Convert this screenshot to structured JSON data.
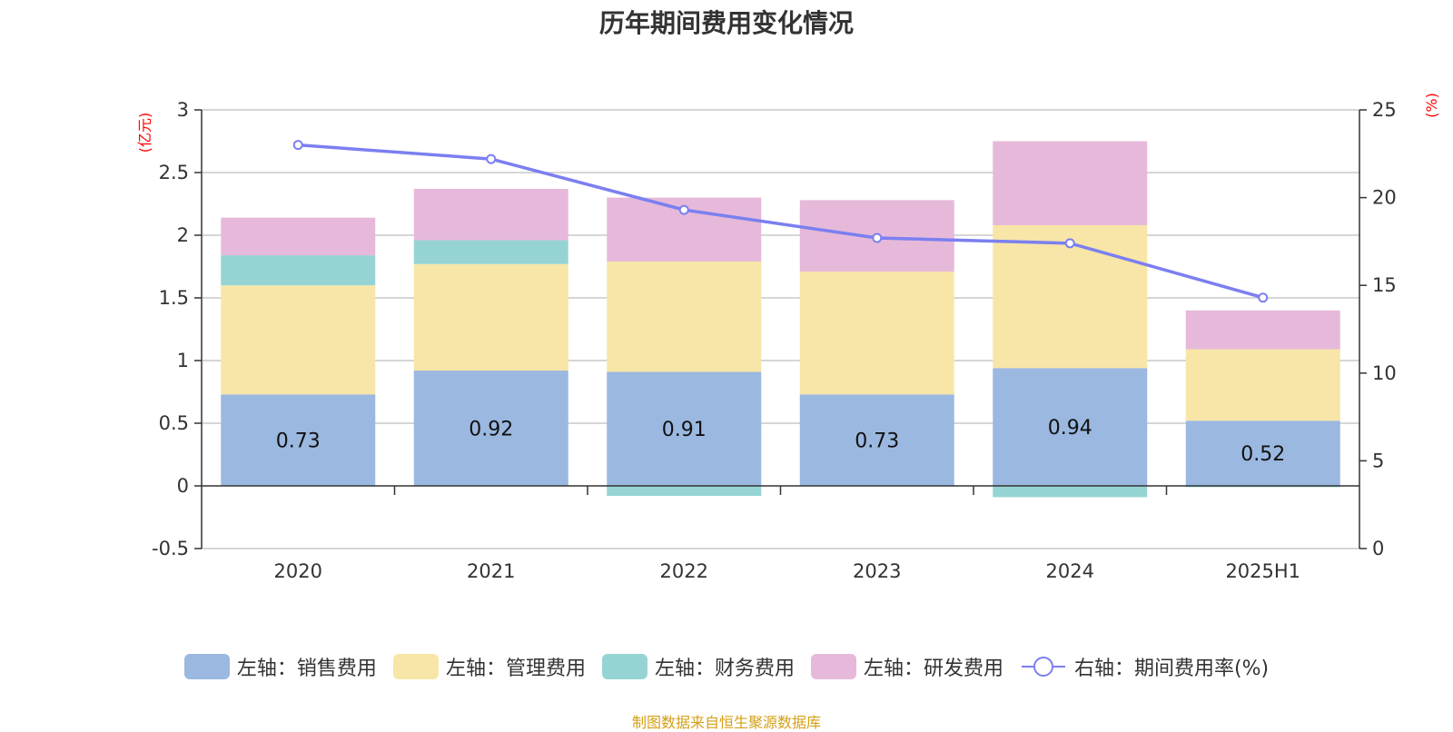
{
  "chart_data": {
    "type": "bar",
    "title": "历年期间费用变化情况",
    "categories": [
      "2020",
      "2021",
      "2022",
      "2023",
      "2024",
      "2025H1"
    ],
    "left_axis": {
      "unit": "(亿元)",
      "range": [
        -0.5,
        3
      ],
      "ticks": [
        "-0.5",
        "0",
        "0.5",
        "1",
        "1.5",
        "2",
        "2.5",
        "3"
      ]
    },
    "right_axis": {
      "unit": "(%)",
      "range": [
        0,
        25
      ],
      "ticks": [
        "0",
        "5",
        "10",
        "15",
        "20",
        "25"
      ]
    },
    "series": [
      {
        "name": "左轴：销售费用",
        "type": "bar",
        "color": "#9bb8e0",
        "values": [
          0.73,
          0.92,
          0.91,
          0.73,
          0.94,
          0.52
        ],
        "labels": [
          "0.73",
          "0.92",
          "0.91",
          "0.73",
          "0.94",
          "0.52"
        ]
      },
      {
        "name": "左轴：管理费用",
        "type": "bar",
        "color": "#f7e6a7",
        "values": [
          0.87,
          0.85,
          0.88,
          0.98,
          1.14,
          0.57
        ]
      },
      {
        "name": "左轴：财务费用",
        "type": "bar",
        "color": "#96d4d4",
        "values": [
          0.24,
          0.19,
          -0.08,
          0.0,
          -0.09,
          -0.01
        ]
      },
      {
        "name": "左轴：研发费用",
        "type": "bar",
        "color": "#e6b9da",
        "values": [
          0.3,
          0.41,
          0.51,
          0.57,
          0.67,
          0.31
        ]
      },
      {
        "name": "右轴：期间费用率(%)",
        "type": "line",
        "color": "#7b7ff0",
        "values": [
          23.0,
          22.2,
          19.3,
          17.7,
          17.4,
          14.3
        ]
      }
    ],
    "grid": true,
    "legend_position": "bottom"
  },
  "source_note": "制图数据来自恒生聚源数据库"
}
